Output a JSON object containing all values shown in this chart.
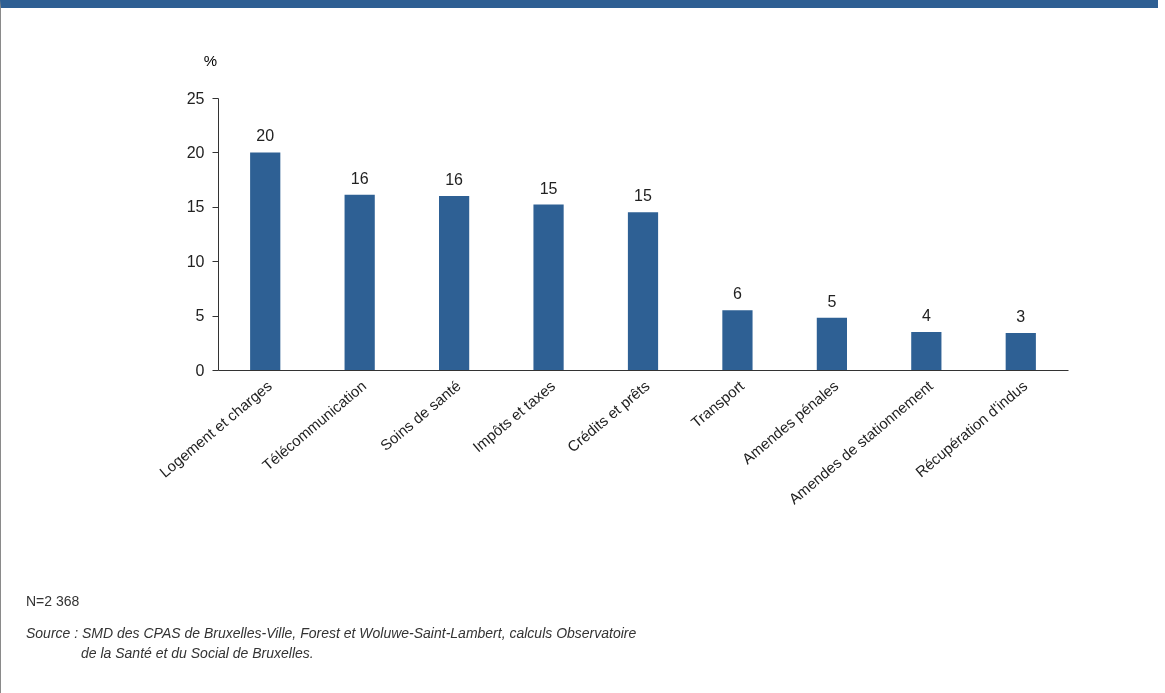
{
  "chart_data": {
    "type": "bar",
    "ylabel": "%",
    "categories": [
      "Logement et charges",
      "Télécommunication",
      "Soins de santé",
      "Impôts et taxes",
      "Crédits et prêts",
      "Transport",
      "Amendes pénales",
      "Amendes de stationnement",
      "Récupération d'indus"
    ],
    "values": [
      20.0,
      16.1,
      16.0,
      15.2,
      14.5,
      5.5,
      4.8,
      3.5,
      3.4
    ],
    "value_labels": [
      "20",
      "16",
      "16",
      "15",
      "15",
      "6",
      "5",
      "4",
      "3"
    ],
    "color": "#2e6094",
    "ylim": [
      0,
      25
    ],
    "yticks": [
      0,
      5,
      10,
      15,
      20,
      25
    ],
    "grid": false,
    "annotations": [
      "N=2 368",
      "Source : SMD des CPAS de Bruxelles-Ville, Forest et Woluwe-Saint-Lambert, calculs Observatoire de la Santé et du Social de Bruxelles."
    ]
  }
}
